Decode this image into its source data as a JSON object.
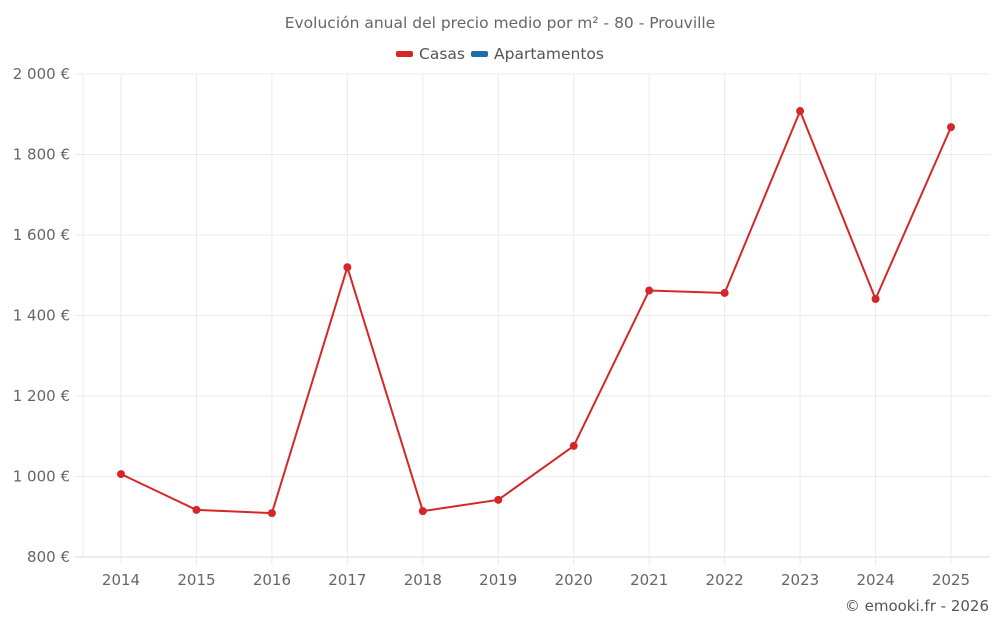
{
  "chart_data": {
    "type": "line",
    "title": "Evolución anual del precio medio por m² - 80 - Prouville",
    "xlabel": "",
    "ylabel": "",
    "categories": [
      "2014",
      "2015",
      "2016",
      "2017",
      "2018",
      "2019",
      "2020",
      "2021",
      "2022",
      "2023",
      "2024",
      "2025"
    ],
    "series": [
      {
        "name": "Casas",
        "color": "#d62728",
        "values": [
          1006,
          917,
          909,
          1520,
          914,
          942,
          1076,
          1462,
          1456,
          1908,
          1441,
          1868
        ]
      },
      {
        "name": "Apartamentos",
        "color": "#1f6ea8",
        "values": []
      }
    ],
    "ylim": [
      800,
      2000
    ],
    "yticks": [
      800,
      1000,
      1200,
      1400,
      1600,
      1800,
      2000
    ],
    "ytick_labels": [
      "800 €",
      "1 000 €",
      "1 200 €",
      "1 400 €",
      "1 600 €",
      "1 800 €",
      "2 000 €"
    ],
    "grid": true,
    "legend_position": "top"
  },
  "title": "Evolución anual del precio medio por m² - 80 - Prouville",
  "legend": [
    {
      "label": "Casas",
      "color": "#d62728"
    },
    {
      "label": "Apartamentos",
      "color": "#1f6ea8"
    }
  ],
  "credit": "© emooki.fr - 2026"
}
